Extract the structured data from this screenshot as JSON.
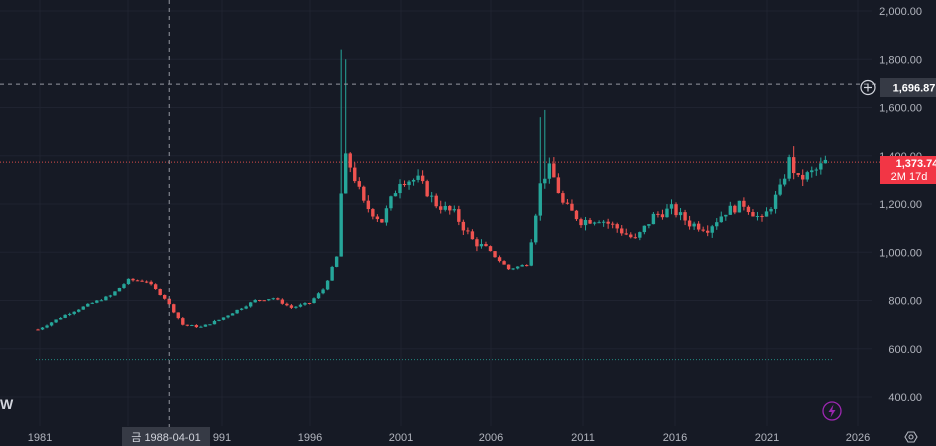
{
  "colors": {
    "background": "#161a25",
    "up": "#26a69a",
    "down": "#ef5350",
    "axis_text": "#b2b5be",
    "grid": "#1f2330",
    "crosshair": "#9598a1",
    "crosshair_tag_bg": "#363a45",
    "price_tag_bg": "#f23645",
    "baseline": "#26a69a",
    "accent": "#9c27b0"
  },
  "crosshair": {
    "price_label": "1,696.87",
    "date_label": "금 1988-04-01",
    "plus_icon": "plus-circle-icon"
  },
  "last_price": {
    "price_label": "1,373.74",
    "countdown_label": "2M 17d"
  },
  "left_edge_label": "W",
  "bottom_icons": {
    "lightning": "lightning-icon",
    "settings": "settings-icon"
  },
  "chart_data": {
    "type": "candlestick",
    "interval": "monthly",
    "x_axis": {
      "tick_labels": [
        "1981",
        "19",
        "991",
        "1996",
        "2001",
        "2006",
        "2011",
        "2016",
        "2021",
        "2026"
      ],
      "range": [
        1980.8,
        2026.5
      ]
    },
    "y_axis": {
      "tick_labels": [
        "2,000.00",
        "1,800.00",
        "1,600.00",
        "1,400.00",
        "1,200.00",
        "1,000.00",
        "800.00",
        "600.00",
        "400.00"
      ],
      "ticks": [
        2000,
        1800,
        1600,
        1400,
        1200,
        1000,
        800,
        600,
        400
      ],
      "range": [
        360,
        2050
      ]
    },
    "last_price": 1373.74,
    "crosshair": {
      "date": 1988.25,
      "price": 1696.87
    },
    "baseline_price": 555,
    "keypoints": [
      [
        1981.0,
        680
      ],
      [
        1982.5,
        740
      ],
      [
        1984.0,
        790
      ],
      [
        1985.0,
        820
      ],
      [
        1986.0,
        885
      ],
      [
        1987.0,
        880
      ],
      [
        1988.0,
        810
      ],
      [
        1989.0,
        700
      ],
      [
        1990.0,
        690
      ],
      [
        1991.0,
        720
      ],
      [
        1992.0,
        760
      ],
      [
        1993.0,
        800
      ],
      [
        1994.0,
        810
      ],
      [
        1995.0,
        770
      ],
      [
        1996.0,
        790
      ],
      [
        1996.8,
        850
      ],
      [
        1997.5,
        980
      ],
      [
        1997.9,
        1400
      ],
      [
        1998.3,
        1350
      ],
      [
        1999.0,
        1200
      ],
      [
        2000.0,
        1130
      ],
      [
        2001.0,
        1300
      ],
      [
        2002.0,
        1300
      ],
      [
        2003.0,
        1200
      ],
      [
        2004.0,
        1160
      ],
      [
        2005.0,
        1050
      ],
      [
        2006.0,
        1000
      ],
      [
        2007.0,
        930
      ],
      [
        2008.0,
        950
      ],
      [
        2008.8,
        1300
      ],
      [
        2009.3,
        1350
      ],
      [
        2010.0,
        1200
      ],
      [
        2011.0,
        1130
      ],
      [
        2012.0,
        1140
      ],
      [
        2013.0,
        1100
      ],
      [
        2014.0,
        1050
      ],
      [
        2015.0,
        1150
      ],
      [
        2016.0,
        1180
      ],
      [
        2017.0,
        1120
      ],
      [
        2018.0,
        1100
      ],
      [
        2019.0,
        1170
      ],
      [
        2020.0,
        1200
      ],
      [
        2021.0,
        1130
      ],
      [
        2022.0,
        1260
      ],
      [
        2022.5,
        1380
      ],
      [
        2023.0,
        1300
      ],
      [
        2024.0,
        1340
      ],
      [
        2024.5,
        1373.74
      ]
    ]
  }
}
